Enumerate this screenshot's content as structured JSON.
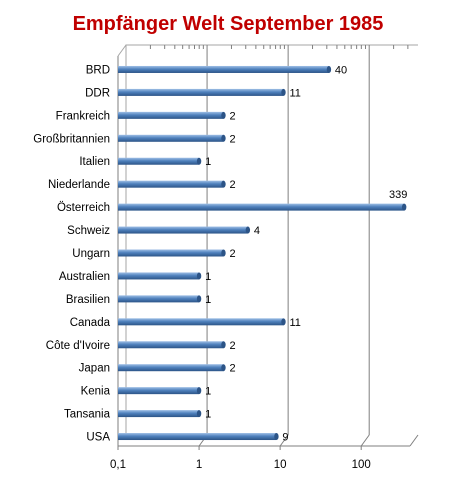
{
  "chart_data": {
    "type": "bar",
    "orientation": "horizontal",
    "title": "Empfänger Welt September 1985",
    "title_color": "#c00000",
    "bar_color": "#4f81bd",
    "x_scale": "log",
    "xlim": [
      0.1,
      400
    ],
    "x_ticks": [
      0.1,
      1,
      10,
      100
    ],
    "x_tick_labels": [
      "0,1",
      "1",
      "10",
      "100"
    ],
    "grid": "major vertical",
    "categories": [
      "BRD",
      "DDR",
      "Frankreich",
      "Großbritannien",
      "Italien",
      "Niederlande",
      "Österreich",
      "Schweiz",
      "Ungarn",
      "Australien",
      "Brasilien",
      "Canada",
      "Côte d'Ivoire",
      "Japan",
      "Kenia",
      "Tansania",
      "USA"
    ],
    "values": [
      40,
      11,
      2,
      2,
      1,
      2,
      339,
      4,
      2,
      1,
      1,
      11,
      2,
      2,
      1,
      1,
      9
    ],
    "value_labels": [
      "40",
      "11",
      "2",
      "2",
      "1",
      "2",
      "339",
      "4",
      "2",
      "1",
      "1",
      "11",
      "2",
      "2",
      "1",
      "1",
      "9"
    ]
  }
}
